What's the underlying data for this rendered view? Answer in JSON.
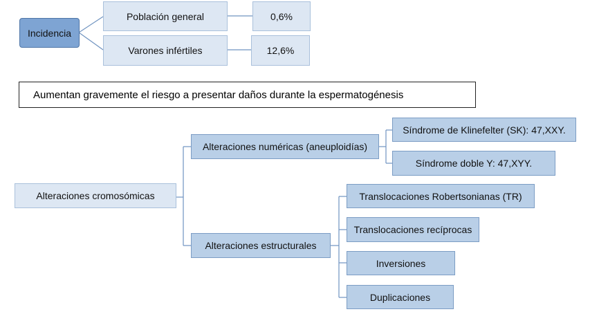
{
  "incidence": {
    "root": "Incidencia",
    "rows": [
      {
        "label": "Población general",
        "value": "0,6%"
      },
      {
        "label": "Varones infértiles",
        "value": "12,6%"
      }
    ]
  },
  "note": "Aumentan gravemente el riesgo a presentar daños durante la espermatogénesis",
  "tree": {
    "root": "Alteraciones cromosómicas",
    "numeric": {
      "label": "Alteraciones numéricas (aneuploidías)",
      "children": [
        "Síndrome de Klinefelter (SK): 47,XXY.",
        "Síndrome doble Y: 47,XYY."
      ]
    },
    "structural": {
      "label": "Alteraciones estructurales",
      "children": [
        "Translocaciones Robertsonianas (TR)",
        "Translocaciones recíprocas",
        "Inversiones",
        "Duplicaciones"
      ]
    }
  }
}
